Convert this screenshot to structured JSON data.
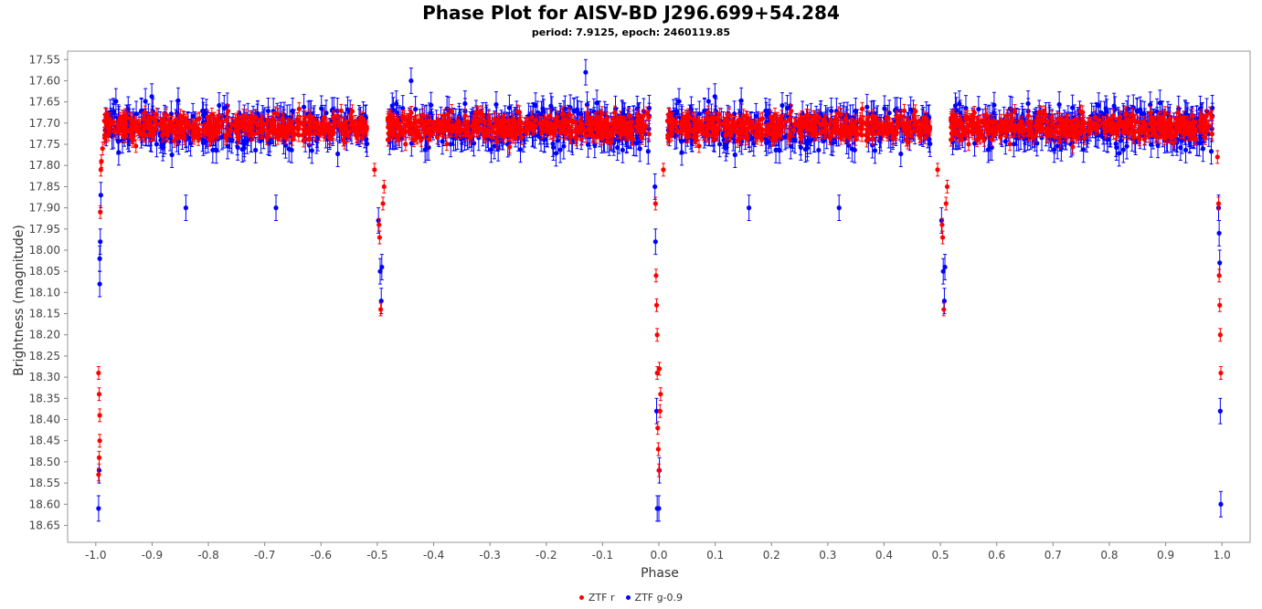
{
  "chart_data": {
    "type": "scatter",
    "title": "Phase Plot for AISV-BD J296.699+54.284",
    "subtitle": "period: 7.9125, epoch: 2460119.85",
    "xlabel": "Phase",
    "ylabel": "Brightness (magnitude)",
    "xlim": [
      -1.05,
      1.05
    ],
    "ylim": [
      18.69,
      17.53
    ],
    "y_inverted": true,
    "grid": false,
    "legend_position": "bottom",
    "x_ticks": [
      "-1.0",
      "-0.9",
      "-0.8",
      "-0.7",
      "-0.6",
      "-0.5",
      "-0.4",
      "-0.3",
      "-0.2",
      "-0.1",
      "0.0",
      "0.1",
      "0.2",
      "0.3",
      "0.4",
      "0.5",
      "0.6",
      "0.7",
      "0.8",
      "0.9",
      "1.0"
    ],
    "y_ticks": [
      "17.55",
      "17.60",
      "17.65",
      "17.70",
      "17.75",
      "17.80",
      "17.85",
      "17.90",
      "17.95",
      "18.00",
      "18.05",
      "18.10",
      "18.15",
      "18.20",
      "18.25",
      "18.30",
      "18.35",
      "18.40",
      "18.45",
      "18.50",
      "18.55",
      "18.60",
      "18.65"
    ],
    "series": [
      {
        "name": "ZTF r",
        "color": "#ff0000",
        "baseline_mag": 17.71,
        "scatter": 0.03,
        "error_bar": 0.015,
        "points": [
          {
            "x": -0.995,
            "y": 18.29
          },
          {
            "x": -0.994,
            "y": 18.34
          },
          {
            "x": -0.993,
            "y": 18.39
          },
          {
            "x": -0.993,
            "y": 18.45
          },
          {
            "x": -0.994,
            "y": 18.49
          },
          {
            "x": -0.995,
            "y": 18.53
          },
          {
            "x": -0.992,
            "y": 17.91
          },
          {
            "x": -0.991,
            "y": 17.81
          },
          {
            "x": -0.99,
            "y": 17.79
          },
          {
            "x": -0.988,
            "y": 17.76
          },
          {
            "x": -0.505,
            "y": 17.81
          },
          {
            "x": -0.497,
            "y": 17.94
          },
          {
            "x": -0.496,
            "y": 17.97
          },
          {
            "x": -0.494,
            "y": 18.14
          },
          {
            "x": -0.49,
            "y": 17.89
          },
          {
            "x": -0.488,
            "y": 17.85
          },
          {
            "x": -0.006,
            "y": 17.89
          },
          {
            "x": -0.005,
            "y": 18.06
          },
          {
            "x": -0.004,
            "y": 18.13
          },
          {
            "x": -0.003,
            "y": 18.2
          },
          {
            "x": -0.003,
            "y": 18.29
          },
          {
            "x": -0.002,
            "y": 18.42
          },
          {
            "x": -0.001,
            "y": 18.47
          },
          {
            "x": 0.0,
            "y": 18.52
          },
          {
            "x": 0.001,
            "y": 18.28
          },
          {
            "x": 0.002,
            "y": 18.38
          },
          {
            "x": 0.003,
            "y": 18.34
          },
          {
            "x": 0.008,
            "y": 17.81
          },
          {
            "x": 0.495,
            "y": 17.81
          },
          {
            "x": 0.503,
            "y": 17.94
          },
          {
            "x": 0.504,
            "y": 17.97
          },
          {
            "x": 0.506,
            "y": 18.14
          },
          {
            "x": 0.51,
            "y": 17.89
          },
          {
            "x": 0.512,
            "y": 17.85
          },
          {
            "x": 0.992,
            "y": 17.78
          },
          {
            "x": 0.994,
            "y": 17.89
          },
          {
            "x": 0.995,
            "y": 18.06
          },
          {
            "x": 0.996,
            "y": 18.13
          },
          {
            "x": 0.997,
            "y": 18.2
          },
          {
            "x": 0.998,
            "y": 18.29
          }
        ]
      },
      {
        "name": "ZTF g-0.9",
        "color": "#0000ff",
        "baseline_mag": 17.71,
        "scatter": 0.05,
        "error_bar": 0.03,
        "points": [
          {
            "x": -0.995,
            "y": 18.61
          },
          {
            "x": -0.994,
            "y": 18.52
          },
          {
            "x": -0.993,
            "y": 18.08
          },
          {
            "x": -0.993,
            "y": 18.02
          },
          {
            "x": -0.992,
            "y": 17.98
          },
          {
            "x": -0.991,
            "y": 17.87
          },
          {
            "x": -0.498,
            "y": 17.93
          },
          {
            "x": -0.495,
            "y": 18.05
          },
          {
            "x": -0.493,
            "y": 18.12
          },
          {
            "x": -0.492,
            "y": 18.04
          },
          {
            "x": -0.007,
            "y": 17.85
          },
          {
            "x": -0.006,
            "y": 17.98
          },
          {
            "x": -0.004,
            "y": 18.38
          },
          {
            "x": -0.003,
            "y": 18.61
          },
          {
            "x": 0.0,
            "y": 18.61
          },
          {
            "x": 0.001,
            "y": 18.52
          },
          {
            "x": 0.502,
            "y": 17.93
          },
          {
            "x": 0.505,
            "y": 18.05
          },
          {
            "x": 0.507,
            "y": 18.12
          },
          {
            "x": 0.508,
            "y": 18.04
          },
          {
            "x": 0.994,
            "y": 17.9
          },
          {
            "x": 0.995,
            "y": 17.96
          },
          {
            "x": 0.996,
            "y": 18.03
          },
          {
            "x": 0.997,
            "y": 18.38
          },
          {
            "x": 0.998,
            "y": 18.6
          },
          {
            "x": -0.84,
            "y": 17.9
          },
          {
            "x": -0.68,
            "y": 17.9
          },
          {
            "x": 0.16,
            "y": 17.9
          },
          {
            "x": 0.32,
            "y": 17.9
          },
          {
            "x": -0.44,
            "y": 17.6
          },
          {
            "x": -0.13,
            "y": 17.58
          }
        ]
      }
    ]
  }
}
